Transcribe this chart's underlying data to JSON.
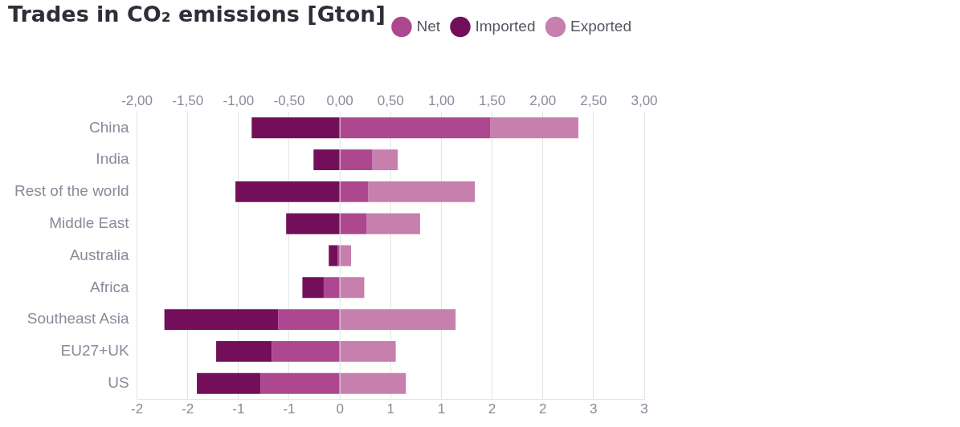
{
  "chart_data": {
    "type": "bar",
    "orientation": "horizontal",
    "stacked": true,
    "title": "Trades in CO₂ emissions [Gton]",
    "categories": [
      "China",
      "India",
      "Rest of the world",
      "Middle East",
      "Australia",
      "Africa",
      "Southeast Asia",
      "EU27+UK",
      "US"
    ],
    "series": [
      {
        "name": "Net",
        "color": "#ad4890",
        "values": [
          1.48,
          0.32,
          0.28,
          0.26,
          -0.02,
          -0.16,
          -0.61,
          -0.67,
          -0.78
        ]
      },
      {
        "name": "Imported",
        "color": "#730f5a",
        "values": [
          -0.87,
          -0.26,
          -1.03,
          -0.53,
          -0.09,
          -0.21,
          -1.12,
          -0.55,
          -0.63
        ]
      },
      {
        "name": "Exported",
        "color": "#c77fae",
        "values": [
          0.87,
          0.25,
          1.05,
          0.53,
          0.11,
          0.24,
          1.14,
          0.55,
          0.65
        ]
      }
    ],
    "xlim": [
      -2,
      3
    ],
    "xticks": [
      {
        "value": -2,
        "label": "-2"
      },
      {
        "value": -1.5,
        "label": "-2"
      },
      {
        "value": -1,
        "label": "-1"
      },
      {
        "value": -0.5,
        "label": "-1"
      },
      {
        "value": 0,
        "label": "0"
      },
      {
        "value": 0.5,
        "label": "1"
      },
      {
        "value": 1,
        "label": "1"
      },
      {
        "value": 1.5,
        "label": "2"
      },
      {
        "value": 2,
        "label": "2"
      },
      {
        "value": 2.5,
        "label": "3"
      },
      {
        "value": 3,
        "label": "3"
      }
    ],
    "x2lim": [
      -2,
      3
    ],
    "x2ticks": [
      {
        "value": -2,
        "label": "-2,00"
      },
      {
        "value": -1.5,
        "label": "-1,50"
      },
      {
        "value": -1,
        "label": "-1,00"
      },
      {
        "value": -0.5,
        "label": "-0,50"
      },
      {
        "value": 0,
        "label": "0,00"
      },
      {
        "value": 0.5,
        "label": "0,50"
      },
      {
        "value": 1,
        "label": "1,00"
      },
      {
        "value": 1.5,
        "label": "1,50"
      },
      {
        "value": 2,
        "label": "2,00"
      },
      {
        "value": 2.5,
        "label": "2,50"
      },
      {
        "value": 3,
        "label": "3,00"
      }
    ],
    "grid": "x",
    "legend": "top right"
  }
}
